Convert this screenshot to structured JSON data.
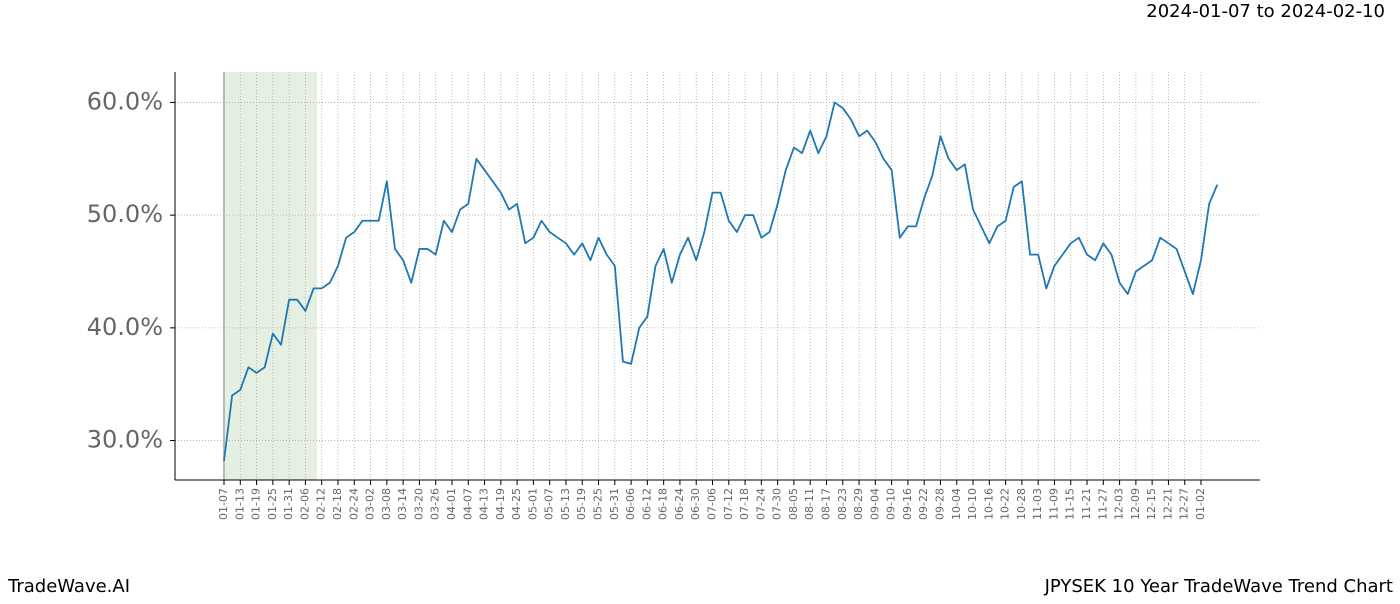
{
  "chart_data": {
    "type": "line",
    "title": "JPYSEK 10 Year TradeWave Trend Chart",
    "subtitle": "2024-01-07 to 2024-02-10",
    "brand": "TradeWave.AI",
    "categories": [
      "01-07",
      null,
      "01-13",
      null,
      "01-19",
      null,
      "01-25",
      null,
      "01-31",
      null,
      "02-06",
      null,
      "02-12",
      null,
      "02-18",
      null,
      "02-24",
      null,
      "03-02",
      null,
      "03-08",
      null,
      "03-14",
      null,
      "03-20",
      null,
      "03-26",
      null,
      "04-01",
      null,
      "04-07",
      null,
      "04-13",
      null,
      "04-19",
      null,
      "04-25",
      null,
      "05-01",
      null,
      "05-07",
      null,
      "05-13",
      null,
      "05-19",
      null,
      "05-25",
      null,
      "05-31",
      null,
      "06-06",
      null,
      "06-12",
      null,
      "06-18",
      null,
      "06-24",
      null,
      "06-30",
      null,
      "07-06",
      null,
      "07-12",
      null,
      "07-18",
      null,
      "07-24",
      null,
      "07-30",
      null,
      "08-05",
      null,
      "08-11",
      null,
      "08-17",
      null,
      "08-23",
      null,
      "08-29",
      null,
      "09-04",
      null,
      "09-10",
      null,
      "09-16",
      null,
      "09-22",
      null,
      "09-28",
      null,
      "10-04",
      null,
      "10-10",
      null,
      "10-16",
      null,
      "10-22",
      null,
      "10-28",
      null,
      "11-03",
      null,
      "11-09",
      null,
      "11-15",
      null,
      "11-21",
      null,
      "11-27",
      null,
      "12-03",
      null,
      "12-09",
      null,
      "12-15",
      null,
      "12-21",
      null,
      "12-27",
      null,
      "01-02",
      null,
      null
    ],
    "series": [
      {
        "name": "JPYSEK",
        "color": "#1f77b4",
        "values": [
          28.2,
          34,
          34.5,
          36.5,
          36,
          36.5,
          39.5,
          38.5,
          42.5,
          42.5,
          41.5,
          43.5,
          43.5,
          44,
          45.5,
          48,
          48.5,
          49.5,
          49.5,
          49.5,
          53,
          47,
          46,
          44,
          47,
          47,
          46.5,
          49.5,
          48.5,
          50.5,
          51,
          55,
          54,
          53,
          52,
          50.5,
          51,
          47.5,
          48,
          49.5,
          48.5,
          48,
          47.5,
          46.5,
          47.5,
          46,
          48,
          46.5,
          45.5,
          37,
          36.8,
          40,
          41,
          45.5,
          47,
          44,
          46.5,
          48,
          46,
          48.5,
          52,
          52,
          49.5,
          48.5,
          50,
          50,
          48,
          48.5,
          51,
          54,
          56,
          55.5,
          57.5,
          55.5,
          57,
          60,
          59.5,
          58.5,
          57,
          57.5,
          56.5,
          55,
          54,
          48,
          49,
          49,
          51.5,
          53.5,
          57,
          55,
          54,
          54.5,
          50.5,
          49,
          47.5,
          49,
          49.5,
          52.5,
          53,
          46.5,
          46.5,
          43.5,
          45.5,
          46.5,
          47.5,
          48,
          46.5,
          46,
          47.5,
          46.5,
          44,
          43,
          45,
          45.5,
          46,
          48,
          47.5,
          47,
          45,
          43,
          46,
          51,
          52.7
        ]
      }
    ],
    "ylim": [
      26.5,
      62.7
    ],
    "yticks": [
      {
        "value": 30,
        "label": "30.0%"
      },
      {
        "value": 40,
        "label": "40.0%"
      },
      {
        "value": 50,
        "label": "50.0%"
      },
      {
        "value": 60,
        "label": "60.0%"
      }
    ],
    "grid": true
  }
}
